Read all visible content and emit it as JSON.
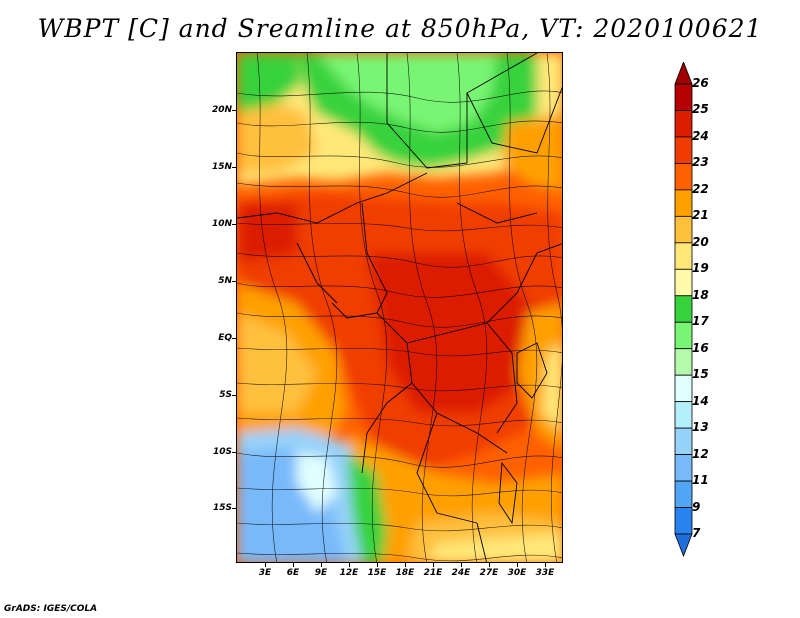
{
  "title": "WBPT [C] and Sreamline at 850hPa, VT: 2020100621",
  "credit": "GrADS: IGES/COLA",
  "map": {
    "lat_ticks": [
      "20N",
      "15N",
      "10N",
      "5N",
      "EQ",
      "5S",
      "10S",
      "15S"
    ],
    "lon_ticks": [
      "3E",
      "6E",
      "9E",
      "12E",
      "15E",
      "18E",
      "21E",
      "24E",
      "27E",
      "30E",
      "33E"
    ]
  },
  "colorbar": {
    "levels": [
      "7",
      "9",
      "11",
      "12",
      "13",
      "14",
      "15",
      "16",
      "17",
      "18",
      "19",
      "20",
      "21",
      "22",
      "23",
      "24",
      "25",
      "26"
    ],
    "colors": [
      "#1e6edc",
      "#2882f0",
      "#50a5f5",
      "#78b9fa",
      "#96d2fa",
      "#b4f0fa",
      "#e1ffff",
      "#b4faaa",
      "#78f573",
      "#37d23c",
      "#fffaaa",
      "#ffe878",
      "#ffc03c",
      "#ffa000",
      "#ff6000",
      "#f03c00",
      "#dc1e00",
      "#b40000",
      "#a00000"
    ]
  }
}
